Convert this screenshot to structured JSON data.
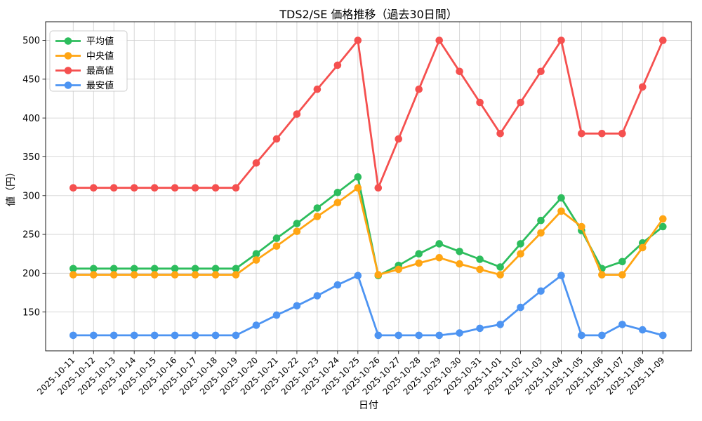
{
  "chart_data": {
    "type": "line",
    "title": "TDS2/SE 価格推移（過去30日間）",
    "xlabel": "日付",
    "ylabel": "値（円）",
    "x": [
      "2025-10-11",
      "2025-10-12",
      "2025-10-13",
      "2025-10-14",
      "2025-10-15",
      "2025-10-16",
      "2025-10-17",
      "2025-10-18",
      "2025-10-19",
      "2025-10-20",
      "2025-10-21",
      "2025-10-22",
      "2025-10-23",
      "2025-10-24",
      "2025-10-25",
      "2025-10-26",
      "2025-10-27",
      "2025-10-28",
      "2025-10-29",
      "2025-10-30",
      "2025-10-31",
      "2025-11-01",
      "2025-11-02",
      "2025-11-03",
      "2025-11-04",
      "2025-11-05",
      "2025-11-06",
      "2025-11-07",
      "2025-11-08",
      "2025-11-09"
    ],
    "series": [
      {
        "name": "平均値",
        "color": "#2dbd5d",
        "values": [
          206,
          206,
          206,
          206,
          206,
          206,
          206,
          206,
          206,
          225,
          245,
          264,
          284,
          304,
          324,
          197,
          210,
          225,
          238,
          228,
          218,
          208,
          238,
          268,
          297,
          255,
          206,
          215,
          239,
          260
        ]
      },
      {
        "name": "中央値",
        "color": "#ffa513",
        "values": [
          198,
          198,
          198,
          198,
          198,
          198,
          198,
          198,
          198,
          217,
          235,
          254,
          273,
          291,
          310,
          198,
          205,
          213,
          220,
          212,
          205,
          198,
          225,
          252,
          280,
          260,
          198,
          198,
          233,
          270
        ]
      },
      {
        "name": "最高値",
        "color": "#f5504f",
        "values": [
          310,
          310,
          310,
          310,
          310,
          310,
          310,
          310,
          310,
          342,
          373,
          405,
          437,
          468,
          500,
          310,
          373,
          437,
          500,
          460,
          420,
          380,
          420,
          460,
          500,
          380,
          380,
          380,
          440,
          500
        ]
      },
      {
        "name": "最安値",
        "color": "#4d94f2",
        "values": [
          120,
          120,
          120,
          120,
          120,
          120,
          120,
          120,
          120,
          133,
          146,
          158,
          171,
          185,
          197,
          120,
          120,
          120,
          120,
          123,
          129,
          134,
          156,
          177,
          197,
          120,
          120,
          134,
          127,
          120
        ]
      }
    ],
    "ylim": [
      100,
      524
    ],
    "yticks": [
      150,
      200,
      250,
      300,
      350,
      400,
      450,
      500
    ],
    "grid": true,
    "legend_position": "upper-left",
    "colors": {
      "background": "#ffffff",
      "grid": "#d2d2d2",
      "spine": "#1a1a1a",
      "text": "#000000",
      "legend_border": "#cccccc"
    }
  }
}
